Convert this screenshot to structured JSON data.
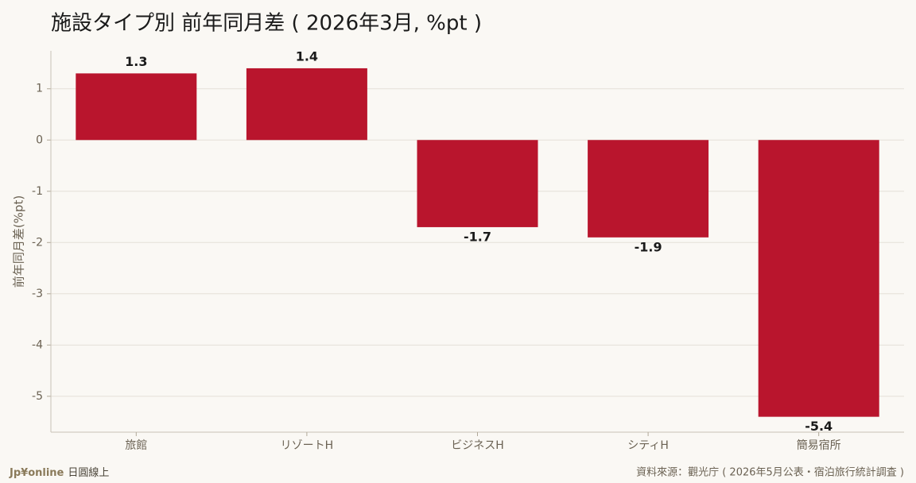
{
  "chart_data": {
    "type": "bar",
    "title": "施設タイプ別 前年同月差 ( 2026年3月, %pt )",
    "y_label": "前年同月差(%pt)",
    "categories": [
      "旅館",
      "リゾートH",
      "ビジネスH",
      "シティH",
      "簡易宿所"
    ],
    "values": [
      1.3,
      1.4,
      -1.7,
      -1.9,
      -5.4
    ],
    "color": "#b9152d",
    "ylim": [
      -5.7,
      1.74
    ],
    "yticks": [
      1,
      0,
      -1,
      -2,
      -3,
      -4,
      -5
    ],
    "grid": true
  },
  "footer": {
    "brand": "Jp¥online",
    "brand_sub": "日圓線上",
    "source": "資料來源：觀光庁 ( 2026年5月公表・宿泊旅行統計調査 )"
  }
}
